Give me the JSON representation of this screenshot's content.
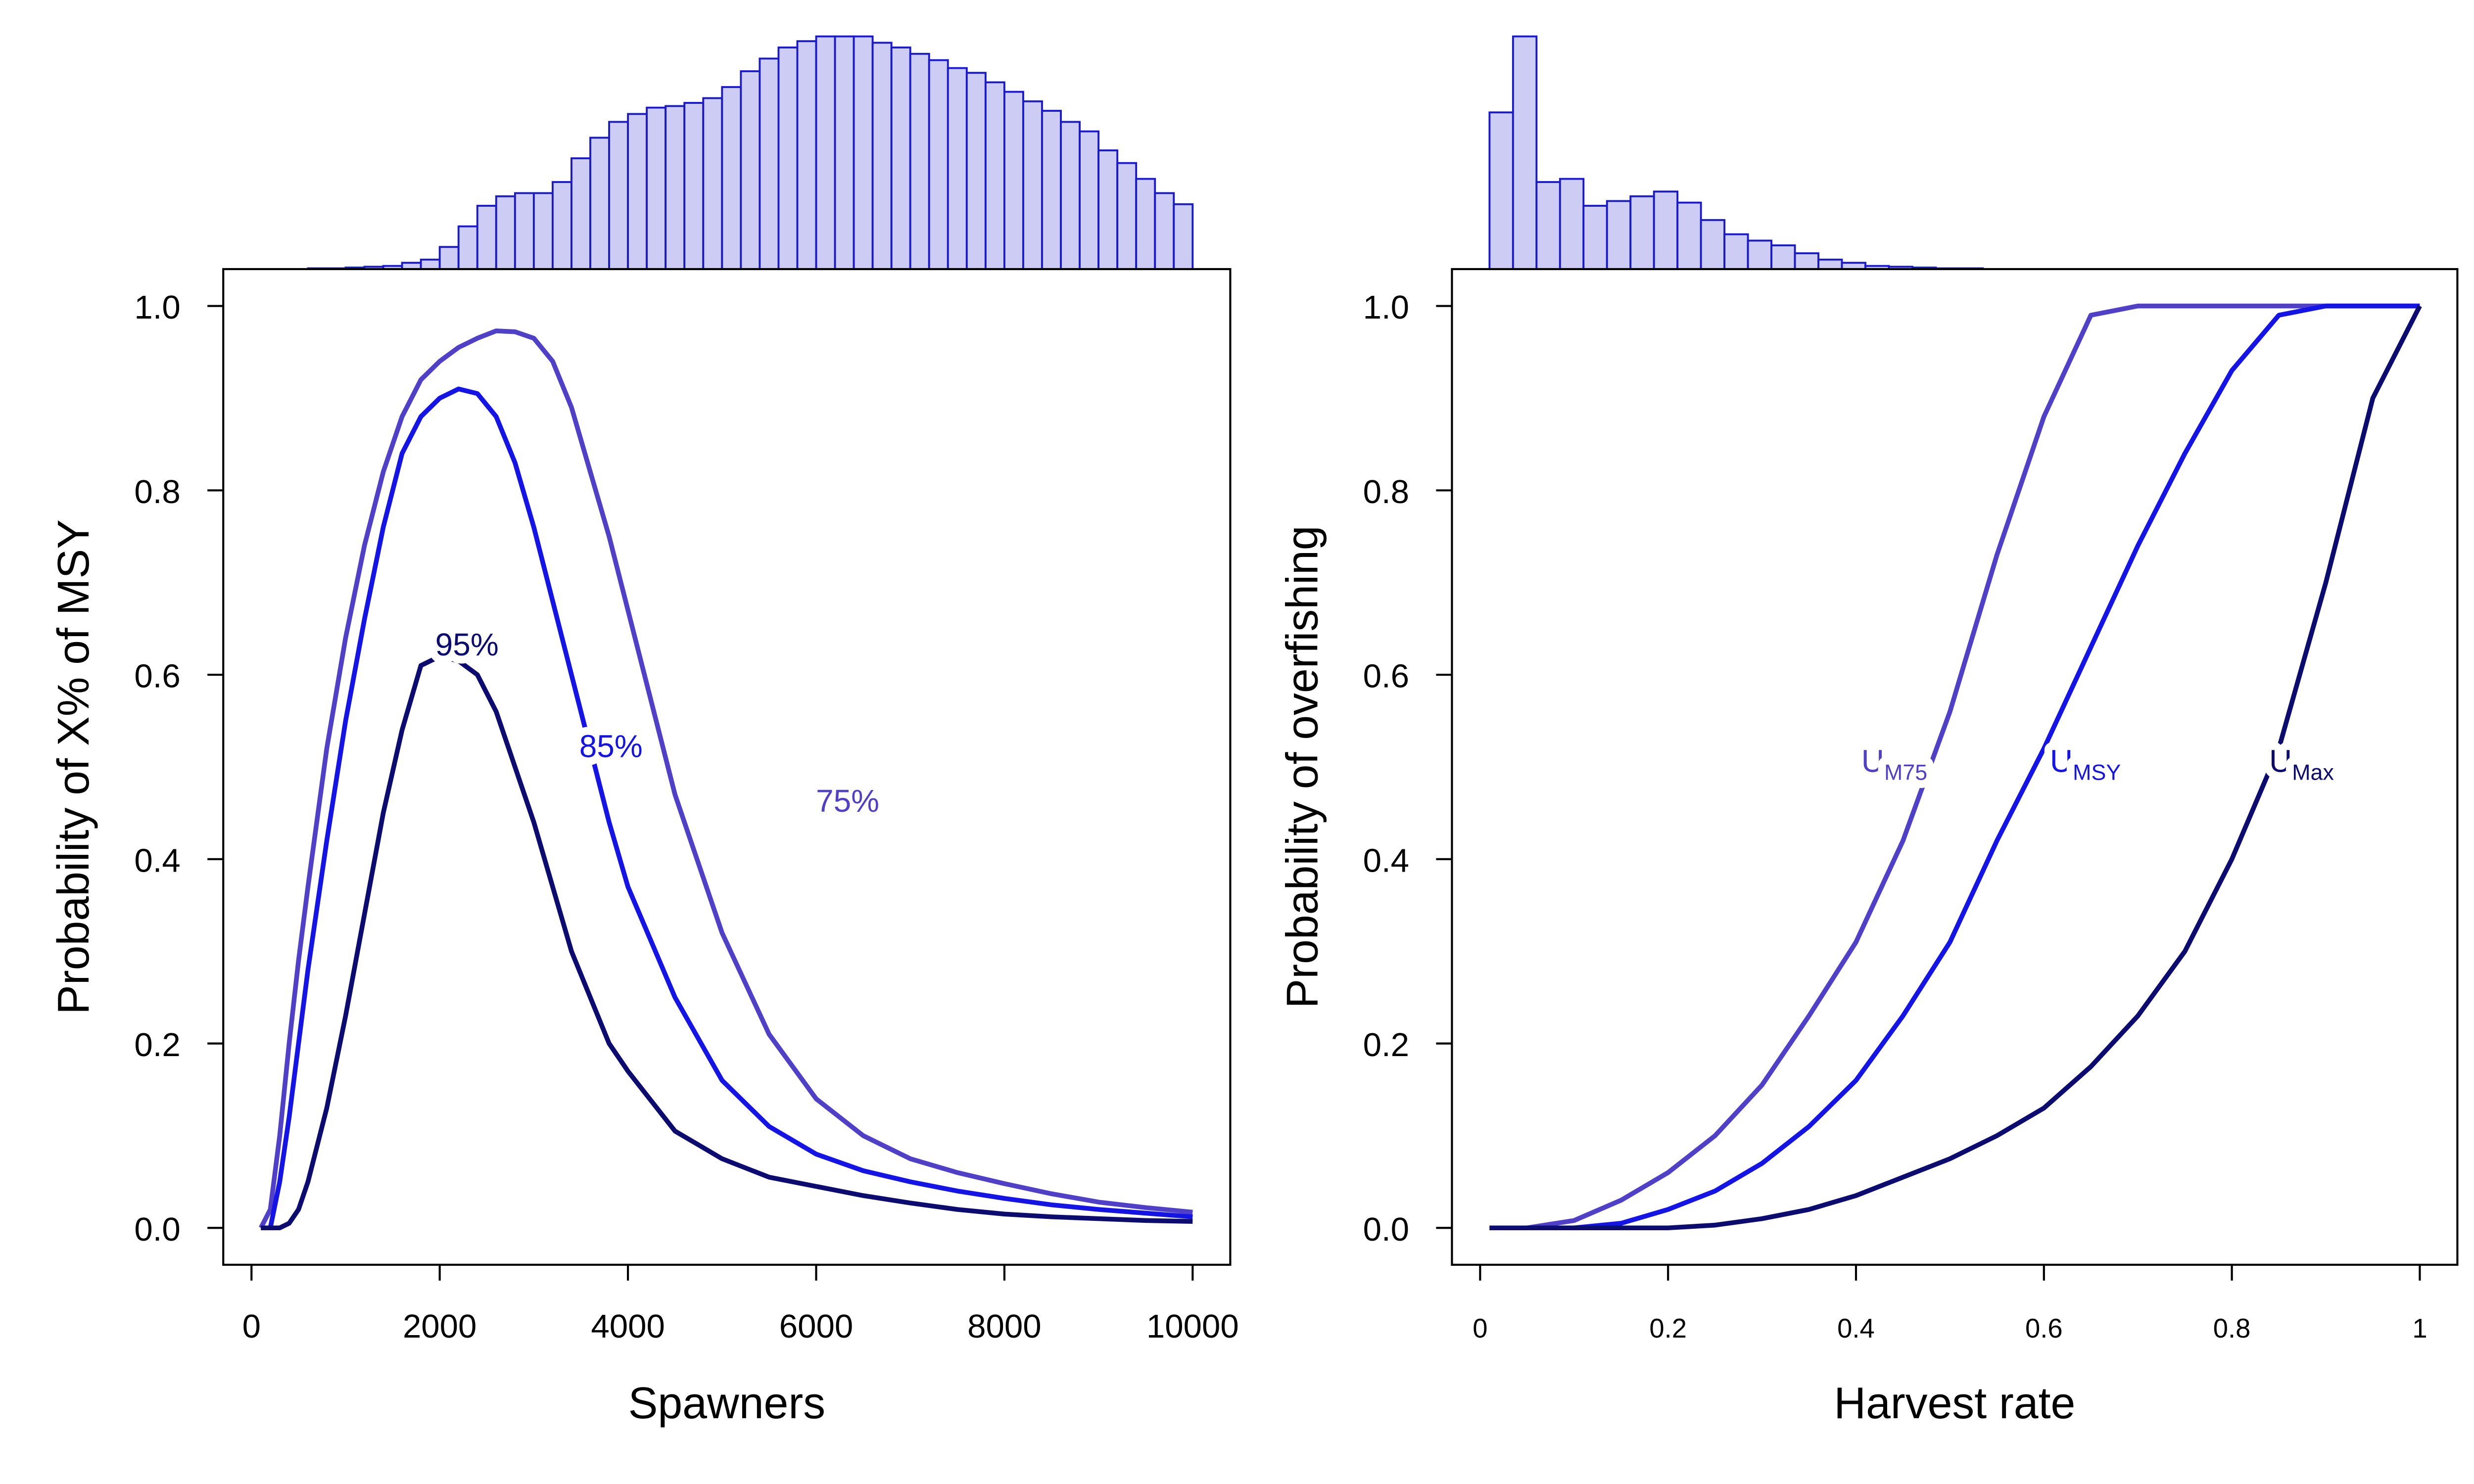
{
  "chart_data": [
    {
      "type": "line",
      "x_label": "Spawners",
      "y_label": "Probability of X% of MSY",
      "xlim": [
        -300,
        10400
      ],
      "ylim": [
        -0.04,
        1.04
      ],
      "xticks": [
        0,
        2000,
        4000,
        6000,
        8000,
        10000
      ],
      "yticks": [
        {
          "value": 0,
          "label": "0.0"
        },
        0.2,
        0.4,
        0.6,
        0.8,
        {
          "value": 1,
          "label": "1.0"
        }
      ],
      "x": [
        100,
        200,
        300,
        400,
        500,
        600,
        800,
        1000,
        1200,
        1400,
        1600,
        1800,
        2000,
        2200,
        2400,
        2600,
        2800,
        3000,
        3200,
        3400,
        3600,
        3800,
        4000,
        4500,
        5000,
        5500,
        6000,
        6500,
        7000,
        7500,
        8000,
        8500,
        9000,
        9500,
        10000
      ],
      "series": [
        {
          "name": "75%",
          "color": "#5040c8",
          "values": [
            0,
            0.02,
            0.1,
            0.2,
            0.29,
            0.37,
            0.52,
            0.64,
            0.74,
            0.82,
            0.88,
            0.92,
            0.94,
            0.955,
            0.965,
            0.973,
            0.972,
            0.965,
            0.94,
            0.89,
            0.82,
            0.75,
            0.67,
            0.47,
            0.32,
            0.21,
            0.14,
            0.1,
            0.075,
            0.06,
            0.048,
            0.037,
            0.028,
            0.022,
            0.017
          ]
        },
        {
          "name": "85%",
          "color": "#1414e6",
          "values": [
            0,
            0,
            0.05,
            0.12,
            0.2,
            0.28,
            0.42,
            0.55,
            0.66,
            0.76,
            0.84,
            0.88,
            0.9,
            0.91,
            0.905,
            0.88,
            0.83,
            0.76,
            0.68,
            0.6,
            0.52,
            0.44,
            0.37,
            0.25,
            0.16,
            0.11,
            0.08,
            0.062,
            0.05,
            0.04,
            0.032,
            0.025,
            0.02,
            0.016,
            0.012
          ]
        },
        {
          "name": "95%",
          "color": "#0c0c70",
          "values": [
            0,
            0,
            0,
            0.005,
            0.02,
            0.05,
            0.13,
            0.23,
            0.34,
            0.45,
            0.54,
            0.61,
            0.62,
            0.615,
            0.6,
            0.56,
            0.5,
            0.44,
            0.37,
            0.3,
            0.25,
            0.2,
            0.17,
            0.105,
            0.075,
            0.055,
            0.045,
            0.035,
            0.027,
            0.02,
            0.015,
            0.012,
            0.01,
            0.008,
            0.007
          ]
        }
      ],
      "histogram": {
        "color": "#ccccf5",
        "edge_color": "#1a1acc",
        "bins": [
          600,
          800,
          1000,
          1200,
          1400,
          1600,
          1800,
          2000,
          2200,
          2400,
          2600,
          2800,
          3000,
          3200,
          3400,
          3600,
          3800,
          4000,
          4200,
          4400,
          4600,
          4800,
          5000,
          5200,
          5400,
          5600,
          5800,
          6000,
          6200,
          6400,
          6600,
          6800,
          7000,
          7200,
          7400,
          7600,
          7800,
          8000,
          8200,
          8400,
          8600,
          8800,
          9000,
          9200,
          9400,
          9600,
          9800,
          10000
        ],
        "counts": [
          0.5,
          0.5,
          1,
          1.5,
          2,
          4,
          6,
          14,
          27,
          40,
          46,
          48,
          48,
          55,
          70,
          83,
          93,
          98,
          102,
          103,
          105,
          108,
          115,
          125,
          133,
          140,
          144,
          147,
          147,
          147,
          143,
          140,
          136,
          132,
          127,
          124,
          118,
          112,
          106,
          100,
          93,
          87,
          75,
          67,
          57,
          48,
          41
        ]
      }
    },
    {
      "type": "line",
      "x_label": "Harvest rate",
      "y_label": "Probability of overfishing",
      "xlim": [
        -0.03,
        1.04
      ],
      "ylim": [
        -0.04,
        1.04
      ],
      "xticks": [
        0,
        0.2,
        0.4,
        0.6,
        0.8,
        1
      ],
      "yticks": [
        {
          "value": 0,
          "label": "0.0"
        },
        0.2,
        0.4,
        0.6,
        0.8,
        {
          "value": 1,
          "label": "1.0"
        }
      ],
      "x": [
        0.01,
        0.05,
        0.1,
        0.15,
        0.2,
        0.25,
        0.3,
        0.35,
        0.4,
        0.45,
        0.5,
        0.55,
        0.6,
        0.65,
        0.7,
        0.75,
        0.8,
        0.85,
        0.9,
        0.95,
        1
      ],
      "series": [
        {
          "name": "UM75",
          "color": "#5040c8",
          "values": [
            0,
            0,
            0.008,
            0.03,
            0.06,
            0.1,
            0.155,
            0.23,
            0.31,
            0.42,
            0.56,
            0.73,
            0.88,
            0.99,
            1,
            1,
            1,
            1,
            1,
            1,
            1
          ]
        },
        {
          "name": "UMSY",
          "color": "#1414e6",
          "values": [
            0,
            0,
            0,
            0.005,
            0.02,
            0.04,
            0.07,
            0.11,
            0.16,
            0.23,
            0.31,
            0.42,
            0.52,
            0.63,
            0.74,
            0.84,
            0.93,
            0.99,
            1,
            1,
            1
          ]
        },
        {
          "name": "UMax",
          "color": "#0c0c70",
          "values": [
            0,
            0,
            0,
            0,
            0,
            0.003,
            0.01,
            0.02,
            0.035,
            0.055,
            0.075,
            0.1,
            0.13,
            0.175,
            0.23,
            0.3,
            0.4,
            0.52,
            0.7,
            0.9,
            1
          ]
        }
      ],
      "histogram": {
        "color": "#ccccf5",
        "edge_color": "#1a1acc",
        "bins": [
          0.01,
          0.035,
          0.06,
          0.085,
          0.11,
          0.135,
          0.16,
          0.185,
          0.21,
          0.235,
          0.26,
          0.285,
          0.31,
          0.335,
          0.36,
          0.385,
          0.41,
          0.435,
          0.46,
          0.485,
          0.51,
          0.535
        ],
        "counts": [
          99,
          147,
          55,
          57,
          40,
          43,
          46,
          49,
          42,
          31,
          22,
          18,
          15,
          10,
          6,
          4,
          2,
          1.5,
          1,
          0.5,
          0.5
        ]
      }
    }
  ]
}
